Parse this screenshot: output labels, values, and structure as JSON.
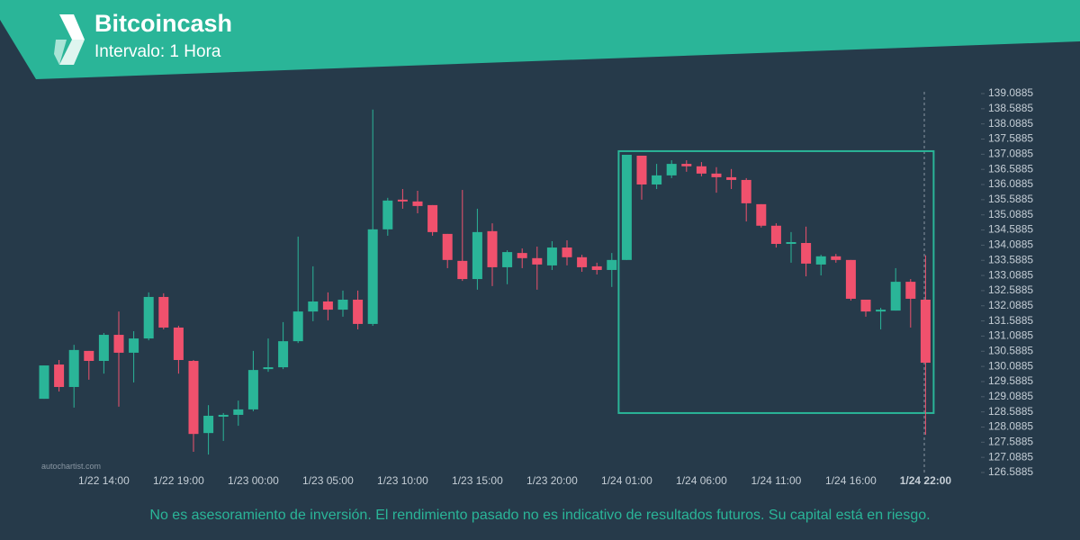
{
  "header": {
    "title": "Bitcoincash",
    "subtitle": "Intervalo: 1 Hora"
  },
  "watermark": "autochartist.com",
  "disclaimer": "No es asesoramiento de inversión. El rendimiento pasado no es indicativo de resultados futuros. Su capital está en riesgo.",
  "chart_data": {
    "type": "candlestick",
    "categories": [
      null,
      null,
      null,
      null,
      "1/22 14:00",
      null,
      null,
      null,
      null,
      "1/22 19:00",
      null,
      null,
      null,
      null,
      "1/23 00:00",
      null,
      null,
      null,
      null,
      "1/23 05:00",
      null,
      null,
      null,
      null,
      "1/23 10:00",
      null,
      null,
      null,
      null,
      "1/23 15:00",
      null,
      null,
      null,
      null,
      "1/23 20:00",
      null,
      null,
      null,
      null,
      "1/24 01:00",
      null,
      null,
      null,
      null,
      "1/24 06:00",
      null,
      null,
      null,
      null,
      "1/24 11:00",
      null,
      null,
      null,
      null,
      "1/24 16:00",
      null,
      null,
      null,
      null,
      "1/24 22:00"
    ],
    "open": [
      129.02,
      130.15,
      129.41,
      130.6,
      130.27,
      131.13,
      130.54,
      131.01,
      132.38,
      131.37,
      130.27,
      127.89,
      128.43,
      128.49,
      128.67,
      130.0,
      130.06,
      130.92,
      131.9,
      132.23,
      131.96,
      132.29,
      131.49,
      134.61,
      135.59,
      135.53,
      135.41,
      134.46,
      133.57,
      132.97,
      134.55,
      133.36,
      133.83,
      133.66,
      133.42,
      134.01,
      133.69,
      133.39,
      133.27,
      133.6,
      137.04,
      136.09,
      136.39,
      136.77,
      136.69,
      136.45,
      136.33,
      136.24,
      135.44,
      134.73,
      134.13,
      134.16,
      133.45,
      133.72,
      133.6,
      132.29,
      131.9,
      131.93,
      132.88,
      132.29
    ],
    "high": [
      130.12,
      130.3,
      130.8,
      130.6,
      131.19,
      131.9,
      131.25,
      132.53,
      132.5,
      131.43,
      130.3,
      128.81,
      128.55,
      128.96,
      130.6,
      131.01,
      131.55,
      134.37,
      133.39,
      132.53,
      132.59,
      132.59,
      138.56,
      135.65,
      135.94,
      135.88,
      135.41,
      134.46,
      135.91,
      135.29,
      134.81,
      133.92,
      133.98,
      134.04,
      134.22,
      134.25,
      133.77,
      133.51,
      133.83,
      137.07,
      137.04,
      136.77,
      136.89,
      136.89,
      136.83,
      136.66,
      136.6,
      136.3,
      135.44,
      134.81,
      134.52,
      134.7,
      133.77,
      133.8,
      133.6,
      132.29,
      132.02,
      133.33,
      132.97,
      133.75
    ],
    "low": [
      129.02,
      129.26,
      128.73,
      129.65,
      129.85,
      128.76,
      129.56,
      130.95,
      131.31,
      129.85,
      127.27,
      127.18,
      127.63,
      128.13,
      128.61,
      129.91,
      130.0,
      130.86,
      131.58,
      131.61,
      131.73,
      131.31,
      131.43,
      134.4,
      135.29,
      135.14,
      134.4,
      133.33,
      132.91,
      132.62,
      132.74,
      132.8,
      133.33,
      132.62,
      133.27,
      133.42,
      133.21,
      133.12,
      132.71,
      133.6,
      135.59,
      135.94,
      136.3,
      136.51,
      136.36,
      135.82,
      135.94,
      134.87,
      134.67,
      134.01,
      133.51,
      133.06,
      133.09,
      133.51,
      132.26,
      131.73,
      131.31,
      131.93,
      131.37,
      127.83
    ],
    "close": [
      130.12,
      129.41,
      130.63,
      130.27,
      131.13,
      130.54,
      131.01,
      132.38,
      131.37,
      130.3,
      127.86,
      128.46,
      128.49,
      128.67,
      129.97,
      130.06,
      130.92,
      131.9,
      132.23,
      131.96,
      132.29,
      131.49,
      134.61,
      135.56,
      135.53,
      135.38,
      134.52,
      133.6,
      132.97,
      134.52,
      133.36,
      133.86,
      133.66,
      133.45,
      134.01,
      133.69,
      133.36,
      133.27,
      133.6,
      137.07,
      136.09,
      136.39,
      136.77,
      136.69,
      136.45,
      136.33,
      136.24,
      135.47,
      134.73,
      134.13,
      134.19,
      133.48,
      133.72,
      133.6,
      132.32,
      131.9,
      131.96,
      132.88,
      132.32,
      130.21
    ],
    "up_color": "#2ab598",
    "down_color": "#f0516d",
    "highlight_box": {
      "start": 39,
      "end": 59,
      "high": 137.19,
      "low": 128.55,
      "color": "#2ab598"
    },
    "ylim": [
      126.5885,
      139.0885
    ],
    "yticks": [
      126.5885,
      127.0885,
      127.5885,
      128.0885,
      128.5885,
      129.0885,
      129.5885,
      130.0885,
      130.5885,
      131.0885,
      131.5885,
      132.0885,
      132.5885,
      133.0885,
      133.5885,
      134.0885,
      134.5885,
      135.0885,
      135.5885,
      136.0885,
      136.5885,
      137.0885,
      137.5885,
      138.0885,
      138.5885,
      139.0885
    ]
  }
}
